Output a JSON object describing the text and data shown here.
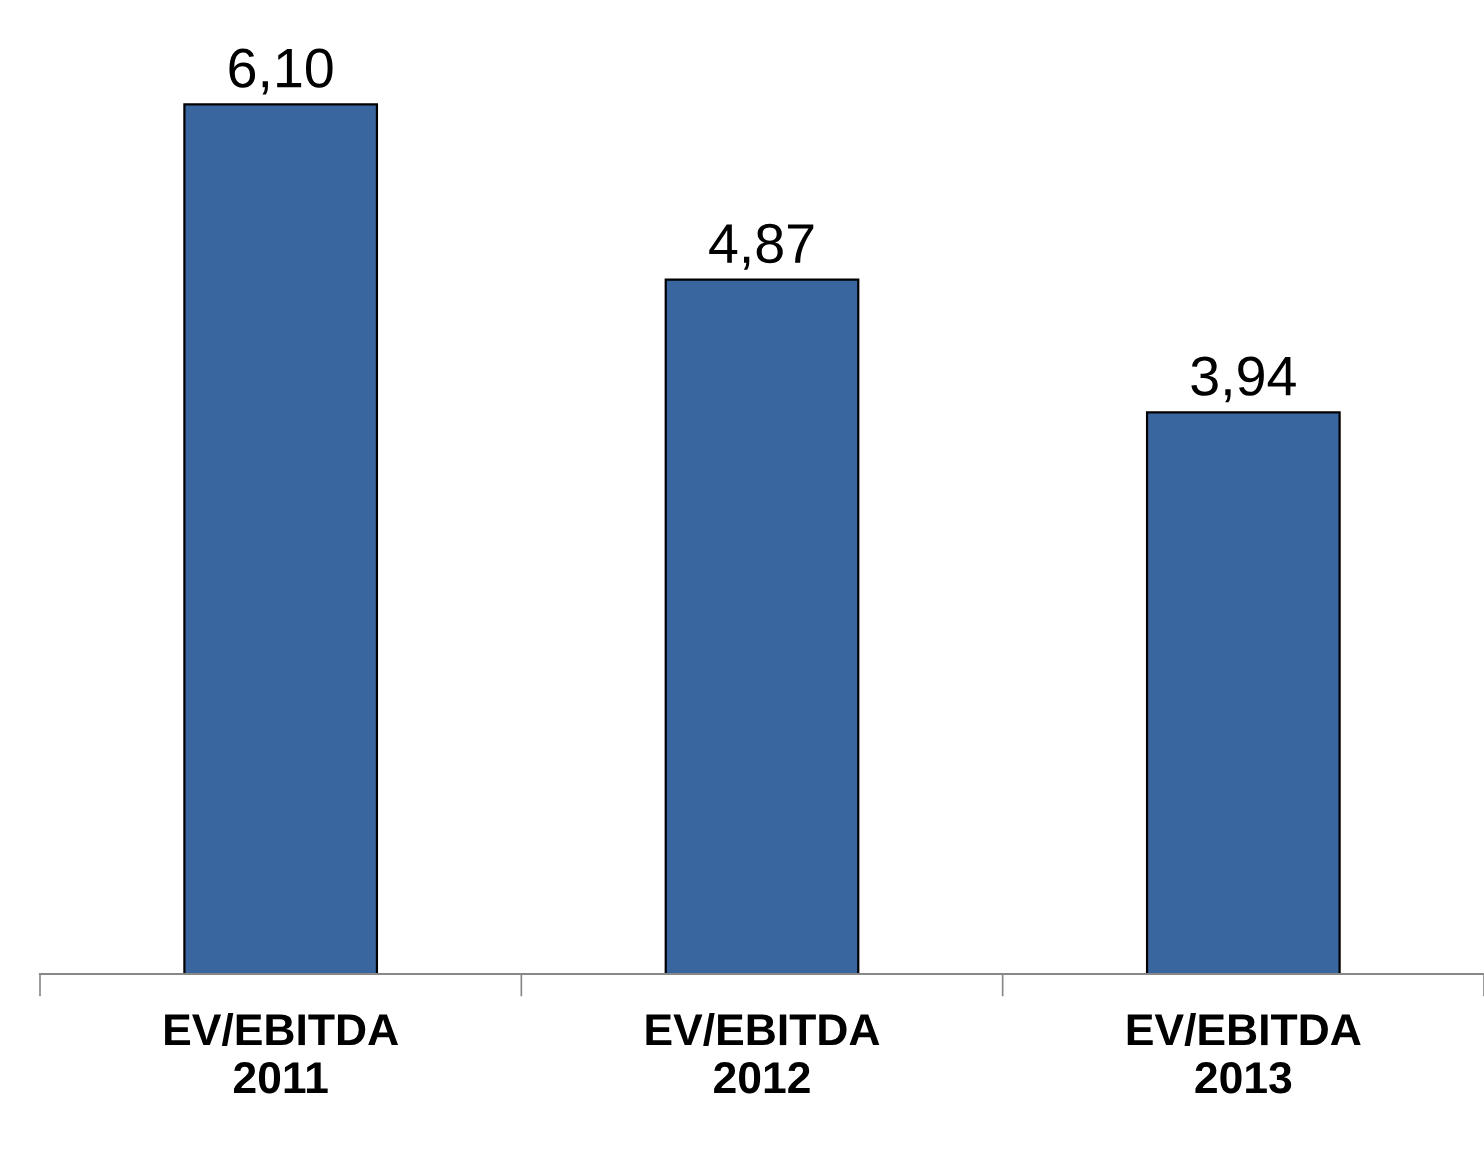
{
  "chart_data": {
    "type": "bar",
    "categories": [
      "EV/EBITDA\n2011",
      "EV/EBITDA\n2012",
      "EV/EBITDA\n2013"
    ],
    "values": [
      6.1,
      4.87,
      3.94
    ],
    "value_labels": [
      "6,10",
      "4,87",
      "3,94"
    ],
    "color": "#3a66a0",
    "grid": false,
    "legend": false
  }
}
